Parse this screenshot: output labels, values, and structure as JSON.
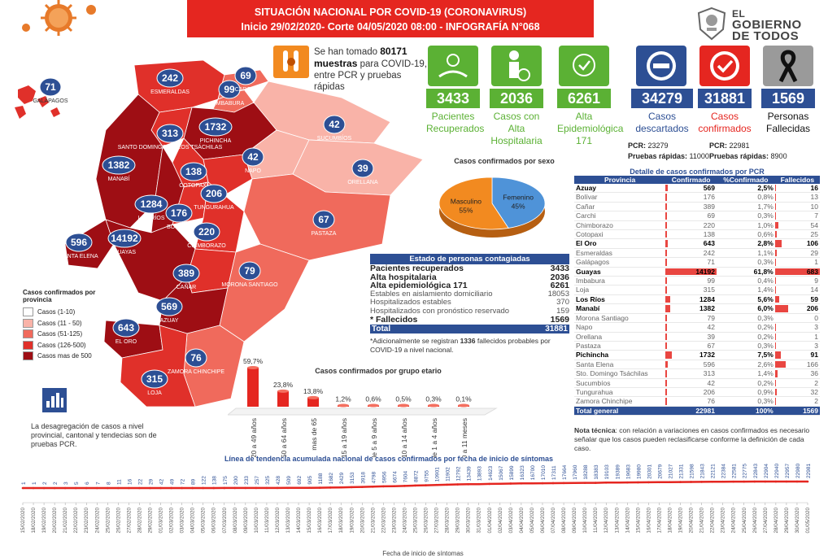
{
  "header": {
    "line1": "SITUACIÓN NACIONAL POR  COVID-19 (CORONAVIRUS)",
    "line2": "Inicio 29/02/2020- Corte 04/05/2020 08:00  - INFOGRAFÍA N°068",
    "logo_top": "EL",
    "logo_mid": "GOBIERNO",
    "logo_bot": "DE TODOS"
  },
  "samples": {
    "pre": "Se han tomado",
    "value": "80171",
    "bold": "muestras",
    "post": "para COVID-19, entre PCR y pruebas rápidas"
  },
  "stats": {
    "recovered": {
      "value": "3433",
      "label": "Pacientes Recuperados",
      "color": "#5bb134"
    },
    "hospital_discharge": {
      "value": "2036",
      "label": "Casos con Alta Hospitalaria",
      "color": "#5bb134"
    },
    "epidemiological": {
      "value": "6261",
      "label": "Alta Epidemiológica",
      "extra": "171",
      "color": "#5bb134"
    },
    "discarded": {
      "value": "34279",
      "label": "Casos descartados",
      "color": "#2d4f94",
      "pcr_label": "PCR:",
      "pcr": "23279",
      "rapid_label": "Pruebas rápidas:",
      "rapid": "11000"
    },
    "confirmed": {
      "value": "31881",
      "label": "Casos confirmados",
      "color": "#e52620",
      "pcr_label": "PCR:",
      "pcr": "22981",
      "rapid_label": "Pruebas rápidas:",
      "rapid": "8900"
    },
    "deaths": {
      "value": "1569",
      "label": "Personas Fallecidas",
      "color": "#2d4f94"
    }
  },
  "map": {
    "bubbles": [
      {
        "label": "71",
        "name": "GALÁPAGOS"
      },
      {
        "label": "242",
        "name": "ESMERALDAS"
      },
      {
        "label": "99",
        "name": "IMBABURA"
      },
      {
        "label": "69",
        "name": "CARCHI"
      },
      {
        "label": "313",
        "name": "SANTO DOMINGO DE LOS TSÁCHILAS"
      },
      {
        "label": "1732",
        "name": "PICHINCHA"
      },
      {
        "label": "42",
        "name": "SUCUMBÍOS"
      },
      {
        "label": "42",
        "name": "NAPO"
      },
      {
        "label": "39",
        "name": "ORELLANA"
      },
      {
        "label": "1382",
        "name": "MANABÍ"
      },
      {
        "label": "138",
        "name": "COTOPAXI"
      },
      {
        "label": "206",
        "name": "TUNGURAHUA"
      },
      {
        "label": "1284",
        "name": "LOS RÍOS"
      },
      {
        "label": "176",
        "name": "BOLÍVAR"
      },
      {
        "label": "67",
        "name": "PASTAZA"
      },
      {
        "label": "220",
        "name": "CHIMBORAZO"
      },
      {
        "label": "596",
        "name": "SANTA ELENA"
      },
      {
        "label": "14192",
        "name": "GUAYAS"
      },
      {
        "label": "389",
        "name": "CAÑAR"
      },
      {
        "label": "79",
        "name": "MORONA SANTIAGO"
      },
      {
        "label": "569",
        "name": "AZUAY"
      },
      {
        "label": "643",
        "name": "EL ORO"
      },
      {
        "label": "76",
        "name": "ZAMORA CHINCHIPE"
      },
      {
        "label": "315",
        "name": "LOJA"
      }
    ],
    "extra_label": "GUAYAS"
  },
  "legend": {
    "title": "Casos confirmados por provincia",
    "items": [
      {
        "label": "Casos (1-10)",
        "color": "#ffffff"
      },
      {
        "label": "Casos (11 - 50)",
        "color": "#f9b3a8"
      },
      {
        "label": "Casos (51-125)",
        "color": "#f06a5c"
      },
      {
        "label": "Casos (126-500)",
        "color": "#e0302a"
      },
      {
        "label": "Casos mas de 500",
        "color": "#9e0e14"
      }
    ]
  },
  "desagregacion": "La desagregación de casos a nivel provincial, cantonal y tendecias son de pruebas PCR.",
  "estado": {
    "title": "Estado de personas contagiadas",
    "rows": [
      {
        "label": "Pacientes recuperados",
        "value": "3433",
        "style": "bold"
      },
      {
        "label": "Alta hospitalaria",
        "value": "2036",
        "style": "bold"
      },
      {
        "label": "Alta epidemiológica 171",
        "value": "6261",
        "style": "bold"
      },
      {
        "label": "Estables en aislamiento domiciliario",
        "value": "18053",
        "style": "dim"
      },
      {
        "label": "Hospitalizados estables",
        "value": "370",
        "style": "dim"
      },
      {
        "label": "Hospitalizados con pronóstico reservado",
        "value": "159",
        "style": "dim"
      },
      {
        "label": "* Fallecidos",
        "value": "1569",
        "style": "bold"
      }
    ],
    "total_label": "Total",
    "total_value": "31881",
    "note_pre": "*Adicionalmente se registran",
    "note_num": "1336",
    "note_post": "fallecidos probables por COVID-19 a nivel nacional."
  },
  "provinces_table": {
    "title": "Detalle de casos confirmados por PCR",
    "headers": [
      "Provincia",
      "Confirmado",
      "%Confirmado",
      "Fallecidos"
    ],
    "rows": [
      [
        "Azuay",
        "569",
        "2,5%",
        "16",
        true
      ],
      [
        "Bolívar",
        "176",
        "0,8%",
        "13",
        false
      ],
      [
        "Cañar",
        "389",
        "1,7%",
        "10",
        false
      ],
      [
        "Carchi",
        "69",
        "0,3%",
        "7",
        false
      ],
      [
        "Chimborazo",
        "220",
        "1,0%",
        "54",
        false
      ],
      [
        "Cotopaxi",
        "138",
        "0,6%",
        "25",
        false
      ],
      [
        "El Oro",
        "643",
        "2,8%",
        "106",
        true
      ],
      [
        "Esmeraldas",
        "242",
        "1,1%",
        "29",
        false
      ],
      [
        "Galápagos",
        "71",
        "0,3%",
        "1",
        false
      ],
      [
        "Guayas",
        "14192",
        "61,8%",
        "683",
        true
      ],
      [
        "Imbabura",
        "99",
        "0,4%",
        "9",
        false
      ],
      [
        "Loja",
        "315",
        "1,4%",
        "14",
        false
      ],
      [
        "Los Ríos",
        "1284",
        "5,6%",
        "59",
        true
      ],
      [
        "Manabí",
        "1382",
        "6,0%",
        "206",
        true
      ],
      [
        "Morona Santiago",
        "79",
        "0,3%",
        "0",
        false
      ],
      [
        "Napo",
        "42",
        "0,2%",
        "3",
        false
      ],
      [
        "Orellana",
        "39",
        "0,2%",
        "1",
        false
      ],
      [
        "Pastaza",
        "67",
        "0,3%",
        "3",
        false
      ],
      [
        "Pichincha",
        "1732",
        "7,5%",
        "91",
        true
      ],
      [
        "Santa Elena",
        "596",
        "2,6%",
        "166",
        false
      ],
      [
        "Sto. Domingo Tsáchilas",
        "313",
        "1,4%",
        "36",
        false
      ],
      [
        "Sucumbíos",
        "42",
        "0,2%",
        "2",
        false
      ],
      [
        "Tungurahua",
        "206",
        "0,9%",
        "32",
        false
      ],
      [
        "Zamora Chinchipe",
        "76",
        "0,3%",
        "2",
        false
      ]
    ],
    "total": [
      "Total general",
      "22981",
      "100%",
      "1569"
    ]
  },
  "nota": {
    "bold": "Nota técnica",
    "text": ": con relación a variaciones en casos confirmados es necesario señalar que los casos  pueden reclasificarse  conforme la definición de cada caso."
  },
  "chart_data": [
    {
      "type": "pie",
      "title": "Casos confirmados por sexo",
      "labels": [
        "Masculino",
        "Femenino"
      ],
      "values": [
        55,
        45
      ],
      "value_labels": [
        "55%",
        "45%"
      ],
      "colors": [
        "#f28a20",
        "#4f93d8"
      ]
    },
    {
      "type": "bar",
      "title": "Casos confirmados por grupo etario",
      "categories": [
        "de 20 a 49 años",
        "de 50 a 64 años",
        "mas de 65",
        "de 15 a 19 años",
        "de 5 a 9 años",
        "de 10 a 14 años",
        "de 1 a 4 años",
        "de 0 a 11 meses"
      ],
      "values": [
        59.7,
        23.8,
        13.8,
        1.2,
        0.6,
        0.5,
        0.3,
        0.1
      ],
      "value_labels": [
        "59,7%",
        "23,8%",
        "13,8%",
        "1,2%",
        "0,6%",
        "0,5%",
        "0,3%",
        "0,1%"
      ],
      "color": "#e52620"
    },
    {
      "type": "line",
      "title": "Línea de tendencia acumulada nacional de casos confirmados por fecha de inicio de síntomas",
      "xlabel": "Fecha de inicio de síntomas",
      "x": [
        "15/02/2020",
        "18/02/2020",
        "19/02/2020",
        "20/02/2020",
        "21/02/2020",
        "22/02/2020",
        "23/02/2020",
        "24/02/2020",
        "25/02/2020",
        "26/02/2020",
        "27/02/2020",
        "28/02/2020",
        "29/02/2020",
        "01/03/2020",
        "02/03/2020",
        "03/03/2020",
        "04/03/2020",
        "05/03/2020",
        "06/03/2020",
        "07/03/2020",
        "08/03/2020",
        "09/03/2020",
        "10/03/2020",
        "11/03/2020",
        "12/03/2020",
        "13/03/2020",
        "14/03/2020",
        "15/03/2020",
        "16/03/2020",
        "17/03/2020",
        "18/03/2020",
        "19/03/2020",
        "20/03/2020",
        "21/03/2020",
        "22/03/2020",
        "23/03/2020",
        "24/03/2020",
        "25/03/2020",
        "26/03/2020",
        "27/03/2020",
        "28/03/2020",
        "29/03/2020",
        "30/03/2020",
        "31/03/2020",
        "01/04/2020",
        "02/04/2020",
        "03/04/2020",
        "04/04/2020",
        "05/04/2020",
        "06/04/2020",
        "07/04/2020",
        "08/04/2020",
        "09/04/2020",
        "10/04/2020",
        "11/04/2020",
        "12/04/2020",
        "13/04/2020",
        "14/04/2020",
        "15/04/2020",
        "16/04/2020",
        "17/04/2020",
        "18/04/2020",
        "19/04/2020",
        "20/04/2020",
        "21/04/2020",
        "22/04/2020",
        "23/04/2020",
        "24/04/2020",
        "25/04/2020",
        "26/04/2020",
        "27/04/2020",
        "28/04/2020",
        "29/04/2020",
        "30/04/2020",
        "01/05/2020"
      ],
      "values": [
        1,
        1,
        2,
        2,
        3,
        5,
        6,
        7,
        8,
        11,
        16,
        22,
        29,
        42,
        49,
        72,
        89,
        122,
        138,
        175,
        200,
        233,
        257,
        325,
        428,
        509,
        692,
        905,
        1188,
        1682,
        2429,
        3153,
        3918,
        4798,
        5956,
        6674,
        7604,
        8872,
        9755,
        10901,
        11902,
        12792,
        13439,
        13893,
        14623,
        15067,
        15899,
        16323,
        16700,
        17010,
        17311,
        17664,
        17960,
        18288,
        18383,
        19103,
        19389,
        19683,
        19980,
        20301,
        20679,
        21027,
        21331,
        21598,
        21843,
        22121,
        22384,
        22581,
        22775,
        22843,
        22904,
        22940,
        22957,
        22980,
        22981
      ],
      "color": "#e52620"
    }
  ]
}
